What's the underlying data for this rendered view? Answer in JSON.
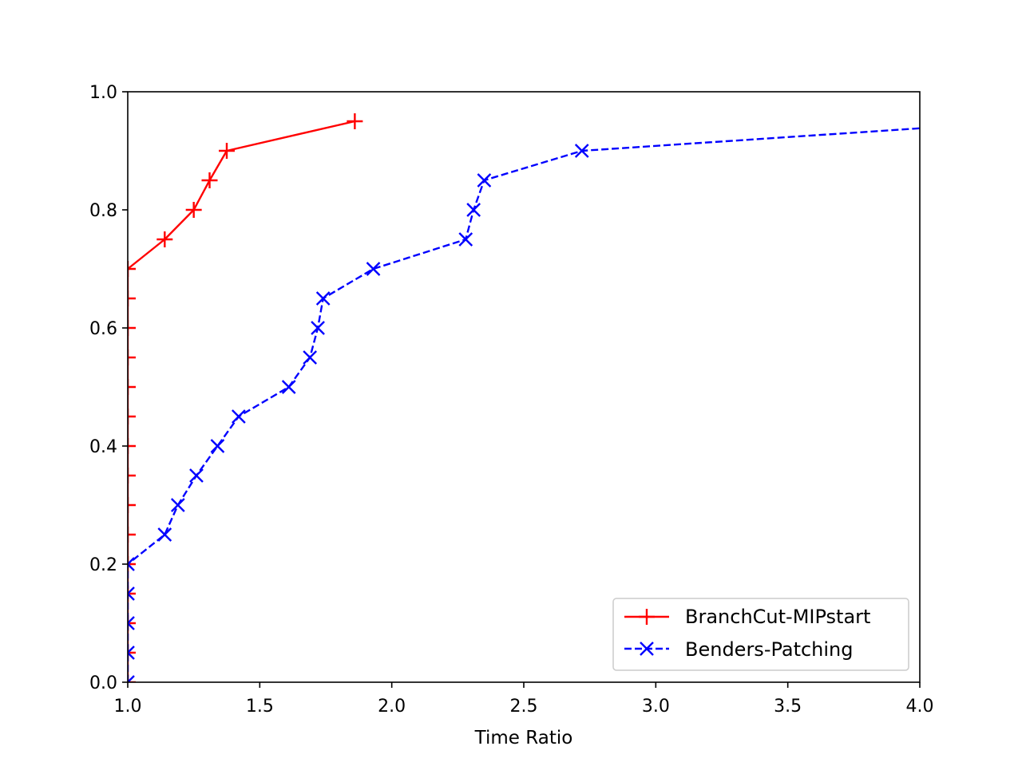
{
  "chart_data": {
    "type": "line",
    "title": "",
    "xlabel": "Time Ratio",
    "ylabel": "",
    "xlim": [
      1.0,
      4.0
    ],
    "ylim": [
      0.0,
      1.0
    ],
    "x_ticks": [
      "1.0",
      "1.5",
      "2.0",
      "2.5",
      "3.0",
      "3.5",
      "4.0"
    ],
    "y_ticks": [
      "0.0",
      "0.2",
      "0.4",
      "0.6",
      "0.8",
      "1.0"
    ],
    "grid": false,
    "legend_position": "lower-right",
    "series": [
      {
        "name": "BranchCut-MIPstart",
        "color": "#ff0000",
        "line_style": "solid",
        "marker": "plus",
        "points": [
          [
            1.0,
            0.0
          ],
          [
            1.0,
            0.05
          ],
          [
            1.0,
            0.1
          ],
          [
            1.0,
            0.15
          ],
          [
            1.0,
            0.2
          ],
          [
            1.0,
            0.25
          ],
          [
            1.0,
            0.3
          ],
          [
            1.0,
            0.35
          ],
          [
            1.0,
            0.4
          ],
          [
            1.0,
            0.45
          ],
          [
            1.0,
            0.5
          ],
          [
            1.0,
            0.55
          ],
          [
            1.0,
            0.6
          ],
          [
            1.0,
            0.65
          ],
          [
            1.0,
            0.7
          ],
          [
            1.14,
            0.75
          ],
          [
            1.25,
            0.8
          ],
          [
            1.31,
            0.85
          ],
          [
            1.375,
            0.9
          ],
          [
            1.86,
            0.95
          ]
        ]
      },
      {
        "name": "Benders-Patching",
        "color": "#0000ff",
        "line_style": "dashed",
        "marker": "x",
        "points": [
          [
            1.0,
            0.0
          ],
          [
            1.0,
            0.05
          ],
          [
            1.0,
            0.1
          ],
          [
            1.0,
            0.15
          ],
          [
            1.0,
            0.2
          ],
          [
            1.14,
            0.25
          ],
          [
            1.19,
            0.3
          ],
          [
            1.26,
            0.35
          ],
          [
            1.34,
            0.4
          ],
          [
            1.42,
            0.45
          ],
          [
            1.61,
            0.5
          ],
          [
            1.69,
            0.55
          ],
          [
            1.72,
            0.6
          ],
          [
            1.74,
            0.65
          ],
          [
            1.93,
            0.7
          ],
          [
            2.28,
            0.75
          ],
          [
            2.31,
            0.8
          ],
          [
            2.35,
            0.85
          ],
          [
            2.72,
            0.9
          ],
          [
            4.4,
            0.95
          ]
        ]
      }
    ]
  }
}
